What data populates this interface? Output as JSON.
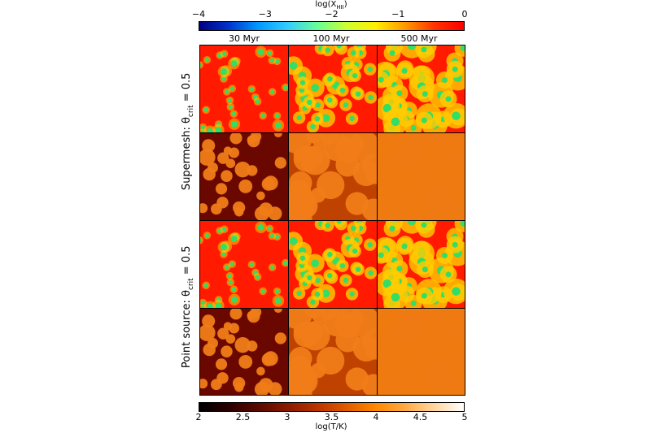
{
  "figure": {
    "top_colorbar": {
      "label": "log(X_HII)",
      "label_main": "log(X",
      "label_sub": "HII",
      "label_close": ")",
      "ticks": [
        "−4",
        "−3",
        "−2",
        "−1",
        "0"
      ],
      "range": [
        -4,
        0
      ],
      "colors": [
        "#000080",
        "#0033cc",
        "#0099ff",
        "#33ccff",
        "#66ff99",
        "#ccff33",
        "#ffee00",
        "#ff9900",
        "#ff3300",
        "#ff0000"
      ]
    },
    "bottom_colorbar": {
      "label": "log(T/K)",
      "ticks": [
        "2",
        "2.5",
        "3",
        "3.5",
        "4",
        "4.5",
        "5"
      ],
      "range": [
        2,
        5
      ],
      "colors": [
        "#000000",
        "#2a0000",
        "#5a0a00",
        "#8a1a00",
        "#b83300",
        "#e05a00",
        "#ff8800",
        "#ffaa44",
        "#ffd6a0",
        "#ffffff"
      ]
    },
    "columns": [
      "30 Myr",
      "100 Myr",
      "500 Myr"
    ],
    "rows": [
      {
        "label_main": "Supermesh: θ",
        "label_sub": "crit",
        "label_tail": " = 0.5"
      },
      {
        "label_main": "Point source: θ",
        "label_sub": "crit",
        "label_tail": " = 0.5"
      }
    ],
    "panel_colors": {
      "ionization_bg": "#ff1a00",
      "ionization_halo": "#ffcc00",
      "ionization_core": "#33dd66",
      "temp_cold_30": "#6a0800",
      "temp_cold_100": "#c04200",
      "temp_hot": "#ee7a10",
      "temp_bubble": "#f07c18"
    }
  }
}
